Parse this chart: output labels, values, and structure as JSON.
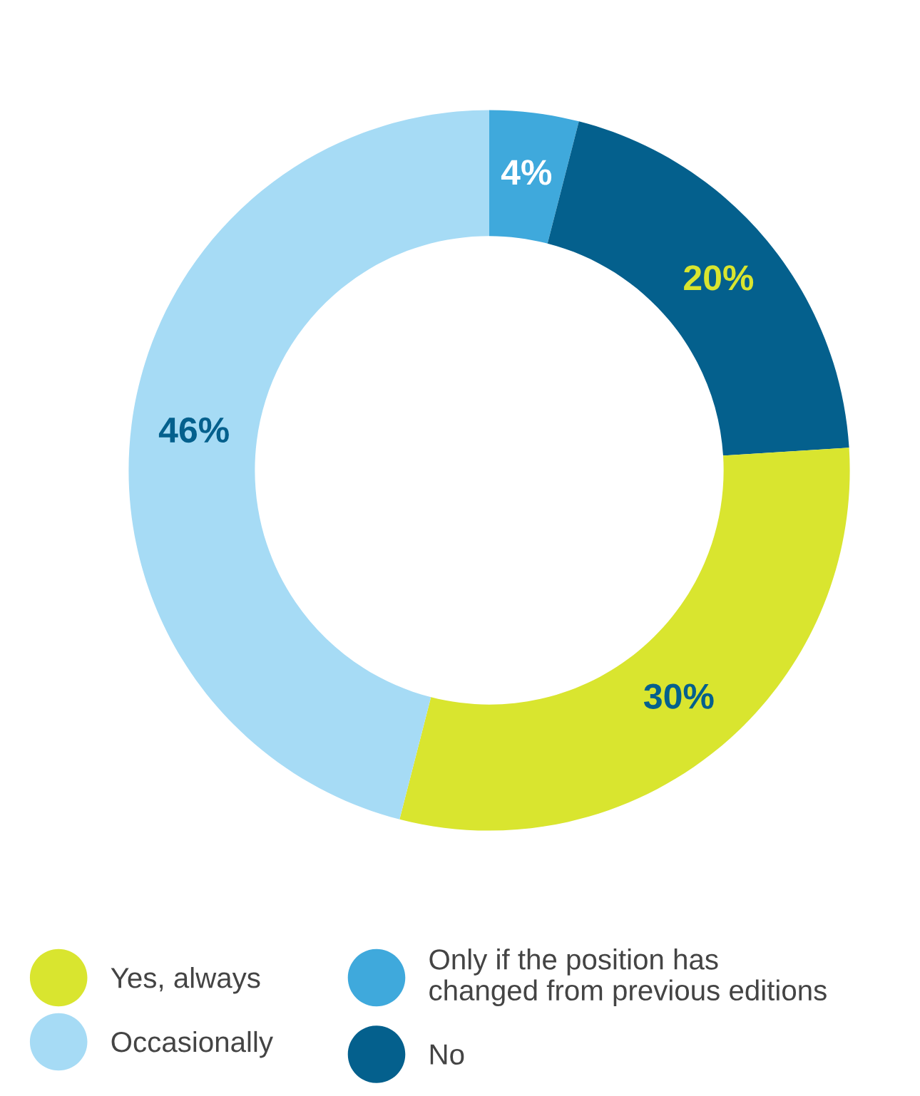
{
  "chart_data": {
    "type": "donut",
    "categories": [
      "Only if the position has\nchanged from previous editions",
      "No",
      "Yes, always",
      "Occasionally"
    ],
    "values": [
      4,
      20,
      30,
      46
    ],
    "colors": [
      "#3fa9dc",
      "#04608d",
      "#d9e52f",
      "#a6dbf5"
    ],
    "value_labels": [
      "4%",
      "20%",
      "30%",
      "46%"
    ],
    "legend": "bottom"
  }
}
